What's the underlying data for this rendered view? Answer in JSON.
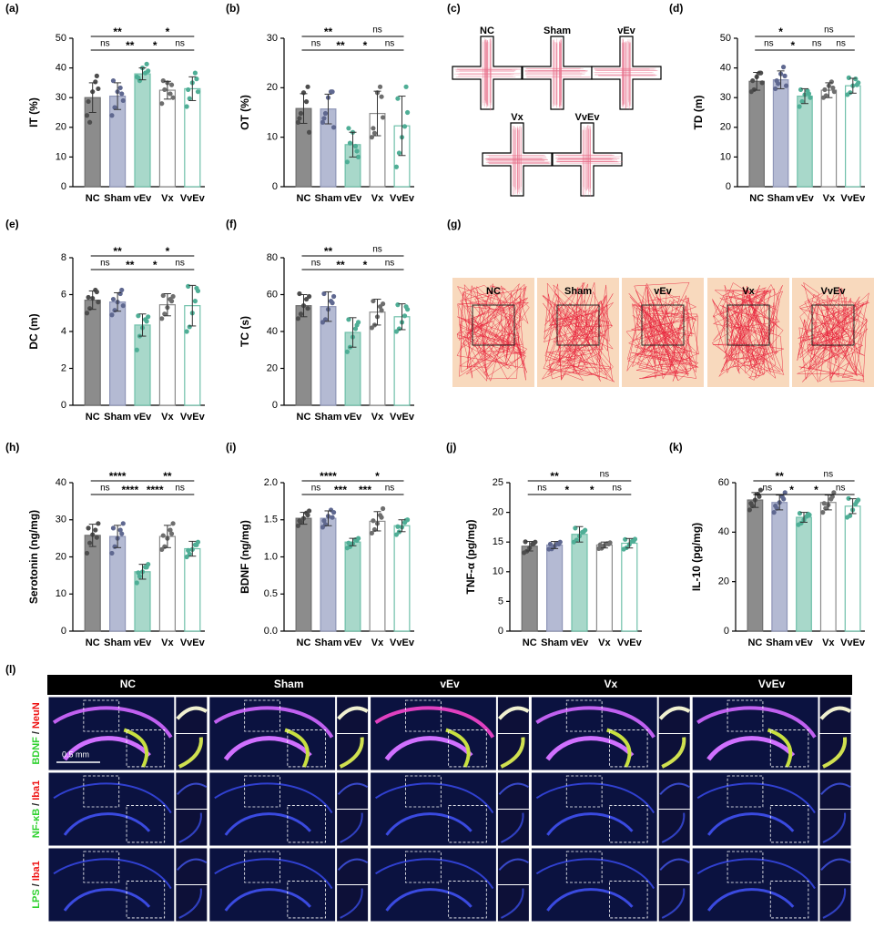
{
  "colors": {
    "fill": [
      "#8c8c8c",
      "#b4bad3",
      "#a8d8ca",
      "#ffffff",
      "#ffffff"
    ],
    "edge": [
      "#6e6e6e",
      "#8f96b8",
      "#6fc0aa",
      "#8c8c8c",
      "#6fc0aa"
    ],
    "dot": [
      "#4d4d4d",
      "#5f6890",
      "#4fae96",
      "#6e6e6e",
      "#4fae96"
    ]
  },
  "chart_data": [
    {
      "type": "bar",
      "panel": "(a)",
      "ylabel": "IT (%)",
      "categories": [
        "NC",
        "Sham",
        "vEv",
        "Vx",
        "VvEv"
      ],
      "values": [
        30,
        30.5,
        38,
        32.5,
        33
      ],
      "errors": [
        5,
        4.5,
        2,
        3,
        4
      ],
      "points": [
        [
          24,
          22,
          32,
          35,
          33,
          29,
          37
        ],
        [
          24,
          27,
          32,
          33,
          29,
          36,
          31
        ],
        [
          37,
          36,
          40,
          38,
          39,
          37,
          41
        ],
        [
          28,
          33,
          35,
          31,
          30,
          36,
          34
        ],
        [
          27,
          30,
          35,
          38,
          32,
          33,
          36
        ]
      ],
      "ylim": [
        0,
        50
      ],
      "yticks": [
        0,
        10,
        20,
        30,
        40,
        50
      ],
      "comparisons": [
        {
          "between": [
            "NC",
            "vEv"
          ],
          "label": "**"
        },
        {
          "between": [
            "vEv",
            "VvEv"
          ],
          "label": "*"
        },
        {
          "between": [
            "NC",
            "Sham"
          ],
          "label": "ns"
        },
        {
          "between": [
            "Sham",
            "vEv"
          ],
          "label": "**"
        },
        {
          "between": [
            "vEv",
            "Vx"
          ],
          "label": "*"
        },
        {
          "between": [
            "Vx",
            "VvEv"
          ],
          "label": "ns"
        }
      ]
    },
    {
      "type": "bar",
      "panel": "(b)",
      "ylabel": "OT (%)",
      "categories": [
        "NC",
        "Sham",
        "vEv",
        "Vx",
        "VvEv"
      ],
      "values": [
        15.8,
        15.7,
        8.5,
        14.8,
        12.3
      ],
      "errors": [
        3,
        3,
        2.5,
        4.5,
        6
      ],
      "points": [
        [
          13,
          15,
          19,
          17,
          11,
          14,
          20
        ],
        [
          13,
          15,
          18,
          19,
          12,
          14,
          19
        ],
        [
          5,
          9,
          11,
          8,
          6,
          12,
          7
        ],
        [
          10,
          11,
          19,
          20,
          14,
          12,
          18
        ],
        [
          4,
          7,
          10,
          12,
          15,
          18,
          20
        ]
      ],
      "ylim": [
        0,
        30
      ],
      "yticks": [
        0,
        10,
        20,
        30
      ],
      "comparisons": [
        {
          "between": [
            "NC",
            "vEv"
          ],
          "label": "**"
        },
        {
          "between": [
            "vEv",
            "VvEv"
          ],
          "label": "ns"
        },
        {
          "between": [
            "NC",
            "Sham"
          ],
          "label": "ns"
        },
        {
          "between": [
            "Sham",
            "vEv"
          ],
          "label": "**"
        },
        {
          "between": [
            "vEv",
            "Vx"
          ],
          "label": "*"
        },
        {
          "between": [
            "Vx",
            "VvEv"
          ],
          "label": "ns"
        }
      ]
    },
    {
      "type": "bar",
      "panel": "(d)",
      "ylabel": "TD (m)",
      "categories": [
        "NC",
        "Sham",
        "vEv",
        "Vx",
        "VvEv"
      ],
      "values": [
        35.5,
        36,
        30.5,
        32.5,
        34
      ],
      "errors": [
        3,
        3,
        2.5,
        2.5,
        2.5
      ],
      "points": [
        [
          32,
          33,
          37,
          38,
          35,
          36,
          38
        ],
        [
          33,
          35,
          38,
          40,
          34,
          36,
          37
        ],
        [
          27,
          29,
          31,
          32,
          30,
          33,
          31
        ],
        [
          30,
          31,
          34,
          35,
          32,
          33,
          33
        ],
        [
          31,
          32,
          34,
          36,
          35,
          37,
          34
        ]
      ],
      "ylim": [
        0,
        50
      ],
      "yticks": [
        0,
        10,
        20,
        30,
        40,
        50
      ],
      "comparisons": [
        {
          "between": [
            "NC",
            "vEv"
          ],
          "label": "*"
        },
        {
          "between": [
            "vEv",
            "VvEv"
          ],
          "label": "ns"
        },
        {
          "between": [
            "NC",
            "Sham"
          ],
          "label": "ns"
        },
        {
          "between": [
            "Sham",
            "vEv"
          ],
          "label": "*"
        },
        {
          "between": [
            "vEv",
            "Vx"
          ],
          "label": "ns"
        },
        {
          "between": [
            "Vx",
            "VvEv"
          ],
          "label": "ns"
        }
      ]
    },
    {
      "type": "bar",
      "panel": "(e)",
      "ylabel": "DC (m)",
      "categories": [
        "NC",
        "Sham",
        "vEv",
        "Vx",
        "VvEv"
      ],
      "values": [
        5.7,
        5.6,
        4.35,
        5.45,
        5.4
      ],
      "errors": [
        0.5,
        0.5,
        0.6,
        0.6,
        1.1
      ],
      "points": [
        [
          5.0,
          5.3,
          5.8,
          6.2,
          5.6,
          5.9,
          6.1
        ],
        [
          4.9,
          5.2,
          5.6,
          6.0,
          5.4,
          5.8,
          6.2
        ],
        [
          3.0,
          3.8,
          4.2,
          4.6,
          4.8,
          4.9,
          4.5
        ],
        [
          4.7,
          5.0,
          5.3,
          5.7,
          5.9,
          6.0,
          5.6
        ],
        [
          4.0,
          4.3,
          5.0,
          5.6,
          6.2,
          6.5,
          6.3
        ]
      ],
      "ylim": [
        0,
        8
      ],
      "yticks": [
        0,
        2,
        4,
        6,
        8
      ],
      "comparisons": [
        {
          "between": [
            "NC",
            "vEv"
          ],
          "label": "**"
        },
        {
          "between": [
            "vEv",
            "VvEv"
          ],
          "label": "*"
        },
        {
          "between": [
            "NC",
            "Sham"
          ],
          "label": "ns"
        },
        {
          "between": [
            "Sham",
            "vEv"
          ],
          "label": "**"
        },
        {
          "between": [
            "vEv",
            "Vx"
          ],
          "label": "*"
        },
        {
          "between": [
            "Vx",
            "VvEv"
          ],
          "label": "ns"
        }
      ]
    },
    {
      "type": "bar",
      "panel": "(f)",
      "ylabel": "TC (s)",
      "categories": [
        "NC",
        "Sham",
        "vEv",
        "Vx",
        "VvEv"
      ],
      "values": [
        54,
        53.5,
        39.5,
        50.5,
        48
      ],
      "errors": [
        6,
        8,
        8,
        7,
        7
      ],
      "points": [
        [
          47,
          50,
          54,
          57,
          59,
          61,
          52
        ],
        [
          45,
          47,
          52,
          56,
          59,
          61,
          55
        ],
        [
          29,
          32,
          37,
          41,
          45,
          47,
          43
        ],
        [
          42,
          44,
          48,
          53,
          55,
          57,
          51
        ],
        [
          40,
          42,
          45,
          48,
          52,
          55,
          53
        ]
      ],
      "ylim": [
        0,
        80
      ],
      "yticks": [
        0,
        20,
        40,
        60,
        80
      ],
      "comparisons": [
        {
          "between": [
            "NC",
            "vEv"
          ],
          "label": "**"
        },
        {
          "between": [
            "vEv",
            "VvEv"
          ],
          "label": "ns"
        },
        {
          "between": [
            "NC",
            "Sham"
          ],
          "label": "ns"
        },
        {
          "between": [
            "Sham",
            "vEv"
          ],
          "label": "**"
        },
        {
          "between": [
            "vEv",
            "Vx"
          ],
          "label": "*"
        },
        {
          "between": [
            "Vx",
            "VvEv"
          ],
          "label": "ns"
        }
      ]
    },
    {
      "type": "bar",
      "panel": "(h)",
      "ylabel": "Serotonin (ng/mg)",
      "categories": [
        "NC",
        "Sham",
        "vEv",
        "Vx",
        "VvEv"
      ],
      "values": [
        25.8,
        25.5,
        16,
        25.5,
        22.2
      ],
      "errors": [
        3,
        3,
        2,
        3,
        2
      ],
      "points": [
        [
          21,
          24,
          26,
          27,
          29,
          28,
          25
        ],
        [
          21,
          23,
          25,
          27,
          29,
          28,
          26
        ],
        [
          13,
          15,
          16,
          17,
          18,
          16,
          17
        ],
        [
          22,
          23,
          25,
          27,
          29,
          26,
          26
        ],
        [
          20,
          21,
          22,
          23,
          24,
          22,
          23
        ]
      ],
      "ylim": [
        0,
        40
      ],
      "yticks": [
        0,
        10,
        20,
        30,
        40
      ],
      "comparisons": [
        {
          "between": [
            "NC",
            "vEv"
          ],
          "label": "****"
        },
        {
          "between": [
            "vEv",
            "VvEv"
          ],
          "label": "**"
        },
        {
          "between": [
            "NC",
            "Sham"
          ],
          "label": "ns"
        },
        {
          "between": [
            "Sham",
            "vEv"
          ],
          "label": "****"
        },
        {
          "between": [
            "vEv",
            "Vx"
          ],
          "label": "****"
        },
        {
          "between": [
            "Vx",
            "VvEv"
          ],
          "label": "ns"
        }
      ]
    },
    {
      "type": "bar",
      "panel": "(i)",
      "ylabel": "BDNF (ng/mg)",
      "categories": [
        "NC",
        "Sham",
        "vEv",
        "Vx",
        "VvEv"
      ],
      "values": [
        1.52,
        1.52,
        1.2,
        1.48,
        1.42
      ],
      "errors": [
        0.08,
        0.1,
        0.05,
        0.13,
        0.08
      ],
      "points": [
        [
          1.42,
          1.48,
          1.52,
          1.58,
          1.62,
          1.5,
          1.55
        ],
        [
          1.4,
          1.45,
          1.55,
          1.62,
          1.6,
          1.5,
          1.52
        ],
        [
          1.12,
          1.15,
          1.18,
          1.22,
          1.25,
          1.2,
          1.21
        ],
        [
          1.32,
          1.38,
          1.45,
          1.55,
          1.65,
          1.5,
          1.52
        ],
        [
          1.3,
          1.35,
          1.4,
          1.45,
          1.5,
          1.42,
          1.48
        ]
      ],
      "ylim": [
        0,
        2
      ],
      "yticks": [
        {
          "value": 0,
          "label": "0.0"
        },
        0.5,
        {
          "value": 1,
          "label": "1.0"
        },
        1.5,
        {
          "value": 2,
          "label": "2.0"
        }
      ],
      "comparisons": [
        {
          "between": [
            "NC",
            "vEv"
          ],
          "label": "****"
        },
        {
          "between": [
            "vEv",
            "VvEv"
          ],
          "label": "*"
        },
        {
          "between": [
            "NC",
            "Sham"
          ],
          "label": "ns"
        },
        {
          "between": [
            "Sham",
            "vEv"
          ],
          "label": "***"
        },
        {
          "between": [
            "vEv",
            "Vx"
          ],
          "label": "***"
        },
        {
          "between": [
            "Vx",
            "VvEv"
          ],
          "label": "ns"
        }
      ]
    },
    {
      "type": "bar",
      "panel": "(j)",
      "ylabel": "TNF-α (pg/mg)",
      "categories": [
        "NC",
        "Sham",
        "vEv",
        "Vx",
        "VvEv"
      ],
      "values": [
        14.3,
        14.5,
        16.3,
        14.5,
        14.8
      ],
      "errors": [
        0.8,
        0.6,
        1.3,
        0.5,
        0.8
      ],
      "points": [
        [
          13.2,
          13.6,
          14.0,
          14.5,
          15.0,
          15.2,
          14.6
        ],
        [
          13.8,
          14.0,
          14.3,
          14.6,
          15.0,
          14.8,
          14.5
        ],
        [
          15.0,
          15.5,
          16.0,
          16.5,
          17.0,
          17.5,
          16.6
        ],
        [
          13.9,
          14.1,
          14.4,
          14.6,
          14.9,
          14.7,
          14.5
        ],
        [
          13.8,
          14.2,
          14.6,
          15.0,
          15.5,
          15.6,
          15.0
        ]
      ],
      "ylim": [
        0,
        25
      ],
      "yticks": [
        0,
        5,
        10,
        15,
        20,
        25
      ],
      "comparisons": [
        {
          "between": [
            "NC",
            "vEv"
          ],
          "label": "**"
        },
        {
          "between": [
            "vEv",
            "VvEv"
          ],
          "label": "ns"
        },
        {
          "between": [
            "NC",
            "Sham"
          ],
          "label": "ns"
        },
        {
          "between": [
            "Sham",
            "vEv"
          ],
          "label": "*"
        },
        {
          "between": [
            "vEv",
            "Vx"
          ],
          "label": "*"
        },
        {
          "between": [
            "Vx",
            "VvEv"
          ],
          "label": "ns"
        }
      ]
    },
    {
      "type": "bar",
      "panel": "(k)",
      "ylabel": "IL-10 (pg/mg)",
      "categories": [
        "NC",
        "Sham",
        "vEv",
        "Vx",
        "VvEv"
      ],
      "values": [
        53,
        52,
        46,
        52,
        50.5
      ],
      "errors": [
        3,
        3,
        2,
        3,
        3
      ],
      "points": [
        [
          49,
          51,
          53,
          55,
          57,
          52,
          54
        ],
        [
          48,
          50,
          52,
          54,
          56,
          51,
          53
        ],
        [
          43,
          44,
          45,
          46,
          47,
          48,
          47
        ],
        [
          48,
          50,
          51,
          53,
          56,
          52,
          54
        ],
        [
          46,
          47,
          49,
          51,
          53,
          54,
          52
        ]
      ],
      "ylim": [
        0,
        60
      ],
      "yticks": [
        0,
        20,
        40,
        60
      ],
      "comparisons": [
        {
          "between": [
            "NC",
            "vEv"
          ],
          "label": "**"
        },
        {
          "between": [
            "vEv",
            "VvEv"
          ],
          "label": "ns"
        },
        {
          "between": [
            "NC",
            "Sham"
          ],
          "label": "ns"
        },
        {
          "between": [
            "Sham",
            "vEv"
          ],
          "label": "*"
        },
        {
          "between": [
            "vEv",
            "Vx"
          ],
          "label": "*"
        },
        {
          "between": [
            "Vx",
            "VvEv"
          ],
          "label": "ns"
        }
      ]
    }
  ],
  "panel_c": {
    "label": "(c)",
    "groups": [
      "NC",
      "Sham",
      "vEv",
      "Vx",
      "VvEv"
    ]
  },
  "panel_g": {
    "label": "(g)",
    "groups": [
      "NC",
      "Sham",
      "vEv",
      "Vx",
      "VvEv"
    ]
  },
  "panel_l": {
    "label": "(l)",
    "columns": [
      "NC",
      "Sham",
      "vEv",
      "Vx",
      "VvEv"
    ],
    "rows": [
      {
        "marker": "BDNF",
        "sep": "/",
        "stain": "NeuN"
      },
      {
        "marker": "NF-κB",
        "sep": "/",
        "stain": "Iba1"
      },
      {
        "marker": "LPS",
        "sep": "/",
        "stain": "Iba1"
      }
    ],
    "scale_bar": "0.5 mm"
  }
}
